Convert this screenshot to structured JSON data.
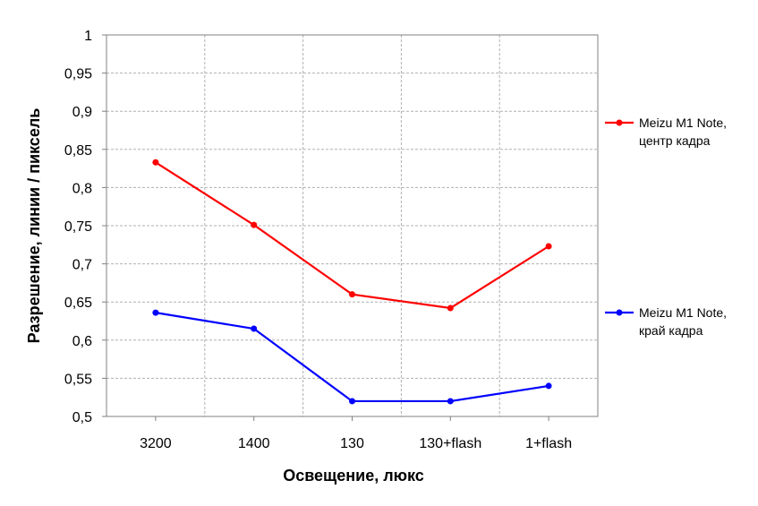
{
  "chart_data": {
    "type": "line",
    "title": "",
    "xlabel": "Освещение, люкс",
    "ylabel": "Разрешение, линии / пиксель",
    "categories": [
      "3200",
      "1400",
      "130",
      "130+flash",
      "1+flash"
    ],
    "ylim": [
      0.5,
      1
    ],
    "yticks": [
      "0,5",
      "0,55",
      "0,6",
      "0,65",
      "0,7",
      "0,75",
      "0,8",
      "0,85",
      "0,9",
      "0,95",
      "1"
    ],
    "grid": true,
    "legend_position": "right",
    "series": [
      {
        "name_line1": "Meizu M1 Note,",
        "name_line2": "центр кадра",
        "color": "#ff0000",
        "values": [
          0.833,
          0.751,
          0.66,
          0.642,
          0.723
        ]
      },
      {
        "name_line1": "Meizu M1 Note,",
        "name_line2": "край кадра",
        "color": "#0000ff",
        "values": [
          0.636,
          0.615,
          0.52,
          0.52,
          0.54
        ]
      }
    ]
  }
}
